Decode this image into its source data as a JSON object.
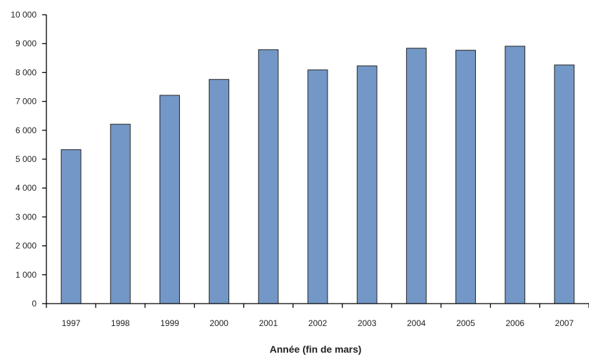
{
  "chart_data": {
    "type": "bar",
    "categories": [
      "1997",
      "1998",
      "1999",
      "2000",
      "2001",
      "2002",
      "2003",
      "2004",
      "2005",
      "2006",
      "2007"
    ],
    "values": [
      5330,
      6210,
      7210,
      7760,
      8790,
      8090,
      8230,
      8840,
      8770,
      8910,
      8260
    ],
    "xlabel": "Année (fin de mars)",
    "ylabel": "",
    "ylim": [
      0,
      10000
    ],
    "yticks": [
      0,
      1000,
      2000,
      3000,
      4000,
      5000,
      6000,
      7000,
      8000,
      9000,
      10000
    ],
    "ytick_labels": [
      "0",
      "1 000",
      "2 000",
      "3 000",
      "4 000",
      "5 000",
      "6 000",
      "7 000",
      "8 000",
      "9 000",
      "10 000"
    ],
    "grid": false,
    "legend": "none",
    "colors": {
      "bar_fill": "#7398c7",
      "bar_stroke": "#222222",
      "axis": "#000000"
    }
  }
}
